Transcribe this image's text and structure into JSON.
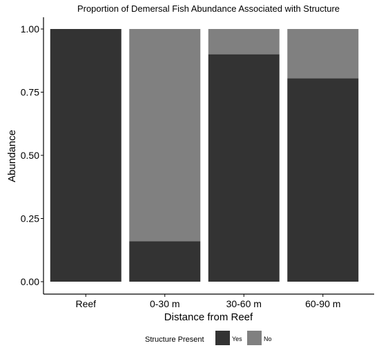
{
  "chart_data": {
    "type": "bar",
    "stacked": true,
    "title": "Proportion of Demersal Fish Abundance Associated with Structure",
    "xlabel": "Distance from Reef",
    "ylabel": "Abundance",
    "ylim": [
      0,
      1
    ],
    "yticks": [
      "0.00",
      "0.25",
      "0.50",
      "0.75",
      "1.00"
    ],
    "categories": [
      "Reef",
      "0-30 m",
      "30-60 m",
      "60-90 m"
    ],
    "series": [
      {
        "name": "Yes",
        "color": "#333333",
        "values": [
          1.0,
          0.16,
          0.9,
          0.805
        ]
      },
      {
        "name": "No",
        "color": "#808080",
        "values": [
          0.0,
          0.84,
          0.1,
          0.195
        ]
      }
    ],
    "legend": {
      "title": "Structure Present",
      "position": "bottom"
    },
    "grid": false
  }
}
